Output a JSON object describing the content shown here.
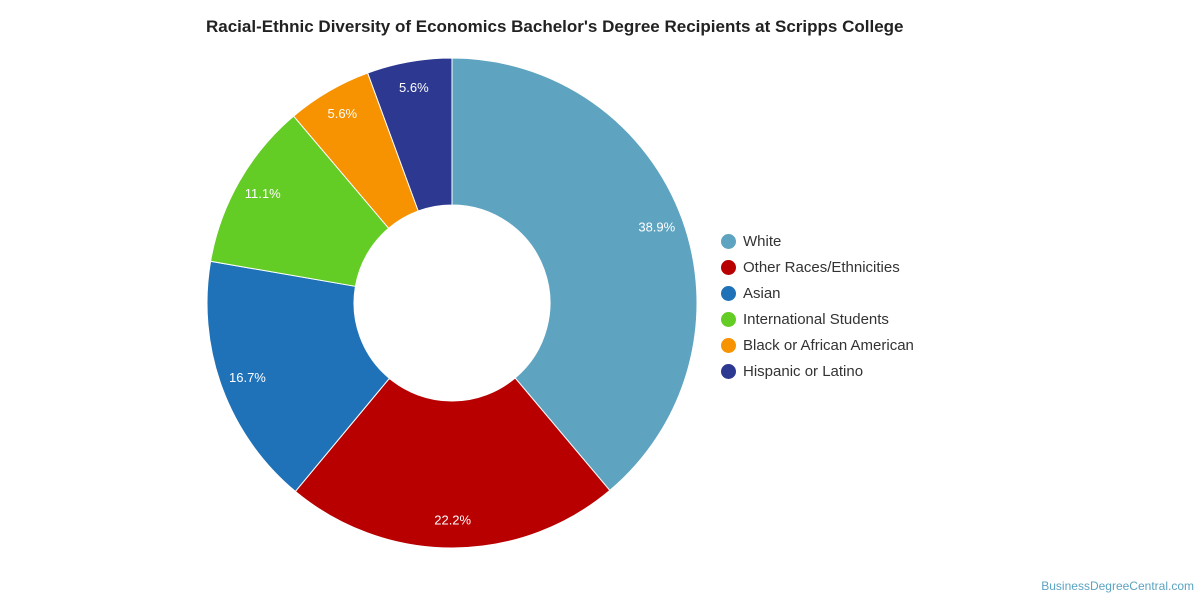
{
  "chart_data": {
    "type": "pie",
    "title": "Racial-Ethnic Diversity of Economics Bachelor's Degree Recipients at Scripps College",
    "donut": true,
    "legend_position": "right",
    "slices": [
      {
        "name": "White",
        "value": 38.9,
        "label": "38.9%",
        "color": "#5ea3c0"
      },
      {
        "name": "Other Races/Ethnicities",
        "value": 22.2,
        "label": "22.2%",
        "color": "#b80000"
      },
      {
        "name": "Asian",
        "value": 16.7,
        "label": "16.7%",
        "color": "#1f72b8"
      },
      {
        "name": "International Students",
        "value": 11.1,
        "label": "11.1%",
        "color": "#63cc25"
      },
      {
        "name": "Black or African American",
        "value": 5.6,
        "label": "5.6%",
        "color": "#f79200"
      },
      {
        "name": "Hispanic or Latino",
        "value": 5.6,
        "label": "5.6%",
        "color": "#2d3891"
      }
    ]
  },
  "source": "BusinessDegreeCentral.com"
}
